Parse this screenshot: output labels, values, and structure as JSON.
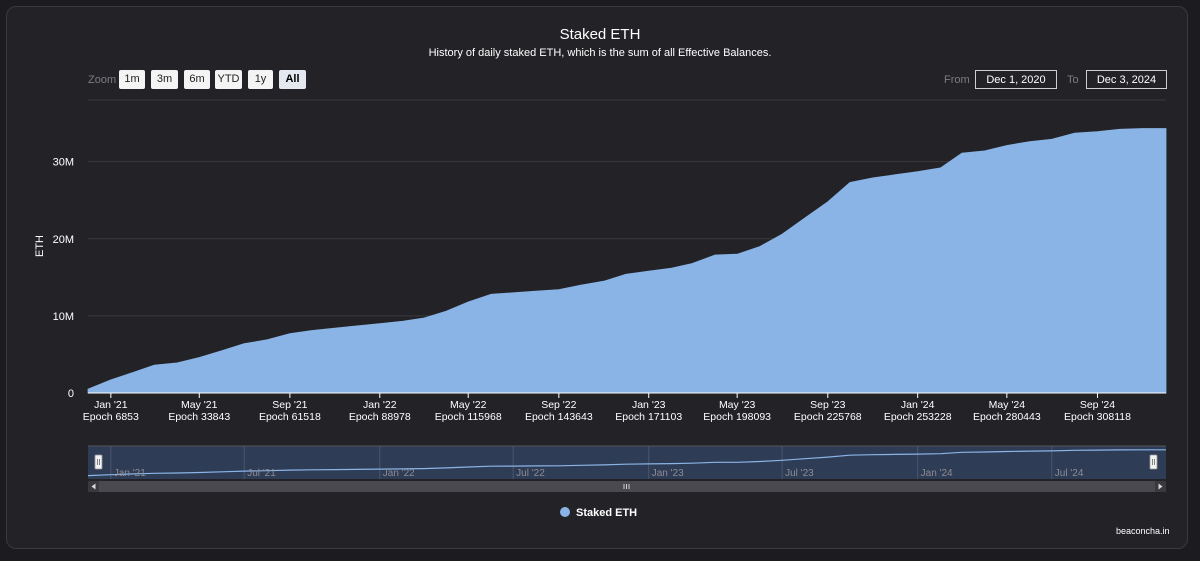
{
  "chart_data": {
    "type": "area",
    "title": "Staked ETH",
    "subtitle": "History of daily staked ETH, which is the sum of all Effective Balances.",
    "ylabel": "ETH",
    "xlabel": "",
    "ylim": [
      0,
      38000000
    ],
    "y_ticks": [
      {
        "value": 0,
        "label": "0"
      },
      {
        "value": 10000000,
        "label": "10M"
      },
      {
        "value": 20000000,
        "label": "20M"
      },
      {
        "value": 30000000,
        "label": "30M"
      }
    ],
    "x_start": "2020-12-01",
    "x_end": "2024-12-03",
    "x_ticks": [
      {
        "date": "2021-01-01",
        "label": "Jan '21",
        "epoch": "Epoch 6853"
      },
      {
        "date": "2021-05-01",
        "label": "May '21",
        "epoch": "Epoch 33843"
      },
      {
        "date": "2021-09-01",
        "label": "Sep '21",
        "epoch": "Epoch 61518"
      },
      {
        "date": "2022-01-01",
        "label": "Jan '22",
        "epoch": "Epoch 88978"
      },
      {
        "date": "2022-05-01",
        "label": "May '22",
        "epoch": "Epoch 115968"
      },
      {
        "date": "2022-09-01",
        "label": "Sep '22",
        "epoch": "Epoch 143643"
      },
      {
        "date": "2023-01-01",
        "label": "Jan '23",
        "epoch": "Epoch 171103"
      },
      {
        "date": "2023-05-01",
        "label": "May '23",
        "epoch": "Epoch 198093"
      },
      {
        "date": "2023-09-01",
        "label": "Sep '23",
        "epoch": "Epoch 225768"
      },
      {
        "date": "2024-01-01",
        "label": "Jan '24",
        "epoch": "Epoch 253228"
      },
      {
        "date": "2024-05-01",
        "label": "May '24",
        "epoch": "Epoch 280443"
      },
      {
        "date": "2024-09-01",
        "label": "Sep '24",
        "epoch": "Epoch 308118"
      }
    ],
    "series": [
      {
        "name": "Staked ETH",
        "color": "#8ab4e6",
        "x": [
          "2020-12-01",
          "2021-01-01",
          "2021-02-01",
          "2021-03-01",
          "2021-04-01",
          "2021-05-01",
          "2021-06-01",
          "2021-07-01",
          "2021-08-01",
          "2021-09-01",
          "2021-10-01",
          "2021-11-01",
          "2021-12-01",
          "2022-01-01",
          "2022-02-01",
          "2022-03-01",
          "2022-04-01",
          "2022-05-01",
          "2022-06-01",
          "2022-07-01",
          "2022-08-01",
          "2022-09-01",
          "2022-10-01",
          "2022-11-01",
          "2022-12-01",
          "2023-01-01",
          "2023-02-01",
          "2023-03-01",
          "2023-04-01",
          "2023-05-01",
          "2023-06-01",
          "2023-07-01",
          "2023-08-01",
          "2023-09-01",
          "2023-10-01",
          "2023-11-01",
          "2023-12-01",
          "2024-01-01",
          "2024-02-01",
          "2024-03-01",
          "2024-04-01",
          "2024-05-01",
          "2024-06-01",
          "2024-07-01",
          "2024-08-01",
          "2024-09-01",
          "2024-10-01",
          "2024-11-01",
          "2024-12-03"
        ],
        "values": [
          500000,
          1700000,
          2700000,
          3600000,
          3900000,
          4600000,
          5500000,
          6400000,
          6900000,
          7700000,
          8100000,
          8400000,
          8700000,
          9000000,
          9300000,
          9700000,
          10600000,
          11800000,
          12800000,
          13000000,
          13200000,
          13400000,
          14000000,
          14500000,
          15400000,
          15800000,
          16200000,
          16800000,
          17900000,
          18000000,
          19000000,
          20600000,
          22700000,
          24800000,
          27300000,
          27900000,
          28300000,
          28700000,
          29200000,
          31100000,
          31400000,
          32100000,
          32600000,
          32900000,
          33700000,
          33900000,
          34200000,
          34300000,
          34300000
        ]
      }
    ],
    "legend": "bottom-center",
    "grid": true
  },
  "zoom": {
    "label": "Zoom",
    "buttons": [
      "1m",
      "3m",
      "6m",
      "YTD",
      "1y",
      "All"
    ],
    "active": "All"
  },
  "range": {
    "from_label": "From",
    "from_value": "Dec 1, 2020",
    "to_label": "To",
    "to_value": "Dec 3, 2024"
  },
  "navigator": {
    "labels": [
      "Jan '21",
      "Jul '21",
      "Jan '22",
      "Jul '22",
      "Jan '23",
      "Jul '23",
      "Jan '24",
      "Jul '24"
    ],
    "label_dates": [
      "2021-01-01",
      "2021-07-01",
      "2022-01-01",
      "2022-07-01",
      "2023-01-01",
      "2023-07-01",
      "2024-01-01",
      "2024-07-01"
    ]
  },
  "credits": "beaconcha.in",
  "colors": {
    "area": "#8ab4e6",
    "navigator_fill": "#2f3c56",
    "grid": "#3a393e"
  }
}
